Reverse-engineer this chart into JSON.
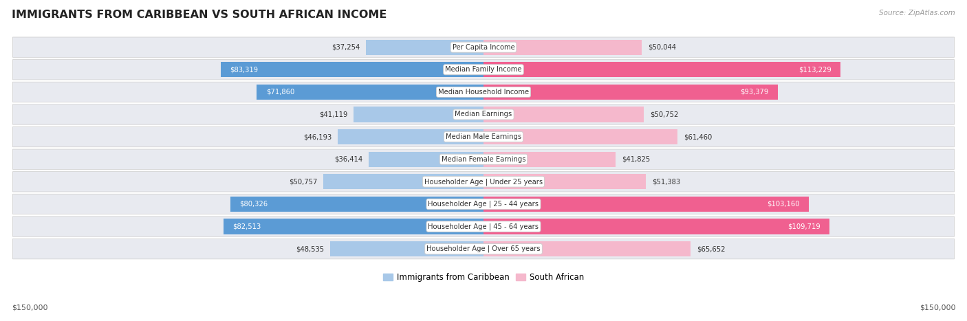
{
  "title": "IMMIGRANTS FROM CARIBBEAN VS SOUTH AFRICAN INCOME",
  "source": "Source: ZipAtlas.com",
  "categories": [
    "Per Capita Income",
    "Median Family Income",
    "Median Household Income",
    "Median Earnings",
    "Median Male Earnings",
    "Median Female Earnings",
    "Householder Age | Under 25 years",
    "Householder Age | 25 - 44 years",
    "Householder Age | 45 - 64 years",
    "Householder Age | Over 65 years"
  ],
  "caribbean_values": [
    37254,
    83319,
    71860,
    41119,
    46193,
    36414,
    50757,
    80326,
    82513,
    48535
  ],
  "southafrican_values": [
    50044,
    113229,
    93379,
    50752,
    61460,
    41825,
    51383,
    103160,
    109719,
    65652
  ],
  "caribbean_labels": [
    "$37,254",
    "$83,319",
    "$71,860",
    "$41,119",
    "$46,193",
    "$36,414",
    "$50,757",
    "$80,326",
    "$82,513",
    "$48,535"
  ],
  "southafrican_labels": [
    "$50,044",
    "$113,229",
    "$93,379",
    "$50,752",
    "$61,460",
    "$41,825",
    "$51,383",
    "$103,160",
    "$109,719",
    "$65,652"
  ],
  "caribbean_color_light": "#a8c8e8",
  "caribbean_color_dark": "#5b9bd5",
  "southafrican_color_light": "#f5b8cc",
  "southafrican_color_dark": "#f06090",
  "max_value": 150000,
  "legend_caribbean": "Immigrants from Caribbean",
  "legend_southafrican": "South African",
  "xlabel_left": "$150,000",
  "xlabel_right": "$150,000",
  "row_bg_color": "#e8eaf0",
  "fig_bg_color": "#ffffff",
  "title_color": "#222222",
  "label_dark_color": "#333333",
  "carib_dark_threshold": 60000,
  "sa_dark_threshold": 85000
}
